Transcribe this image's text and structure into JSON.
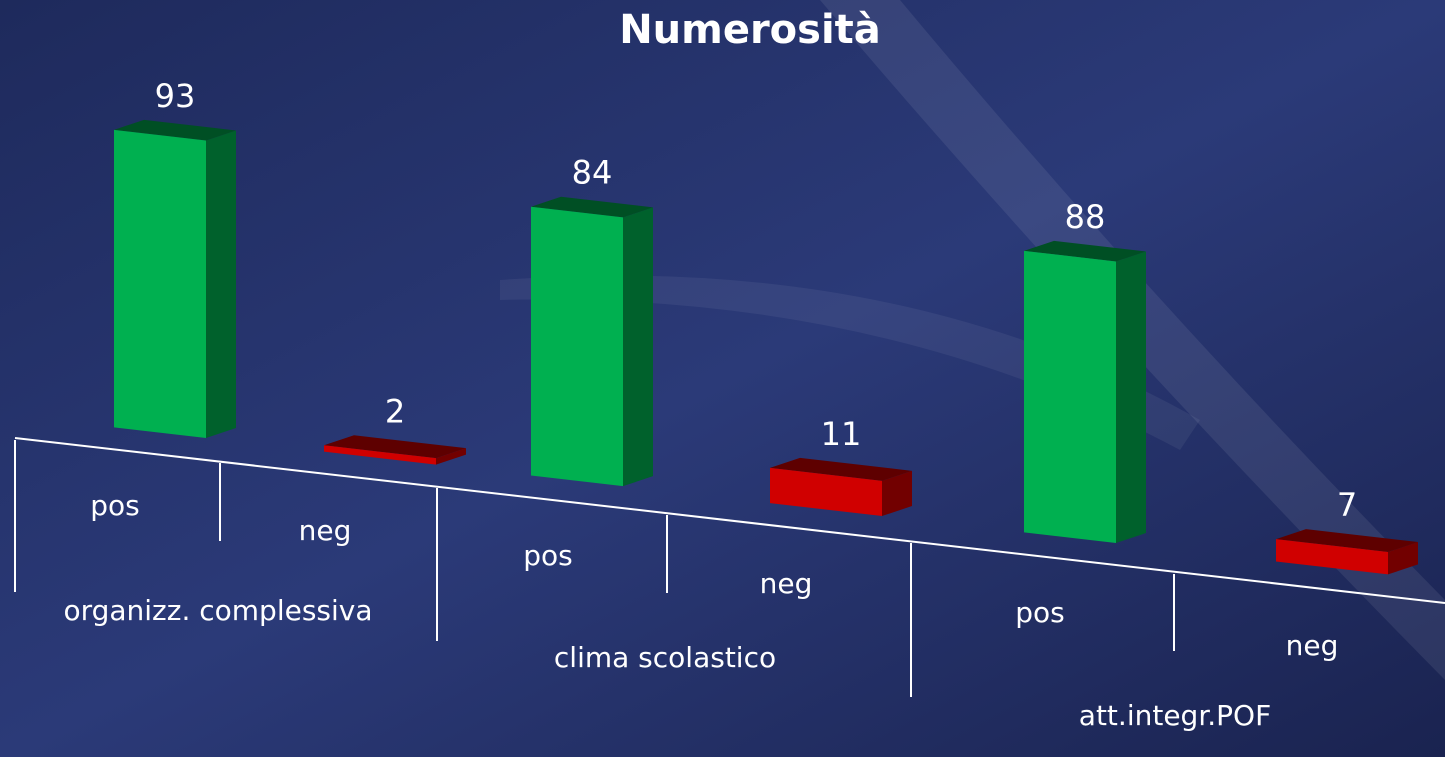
{
  "chart_data": {
    "type": "bar",
    "title": "Numerosità",
    "groups": [
      {
        "name": "organizz. complessiva",
        "categories": [
          "pos",
          "neg"
        ],
        "values": [
          93,
          2
        ]
      },
      {
        "name": "clima scolastico",
        "categories": [
          "pos",
          "neg"
        ],
        "values": [
          84,
          11
        ]
      },
      {
        "name": "att.integr.POF",
        "categories": [
          "pos",
          "neg"
        ],
        "values": [
          88,
          7
        ]
      }
    ],
    "colors": [
      "#00b050",
      "#d00000"
    ]
  }
}
